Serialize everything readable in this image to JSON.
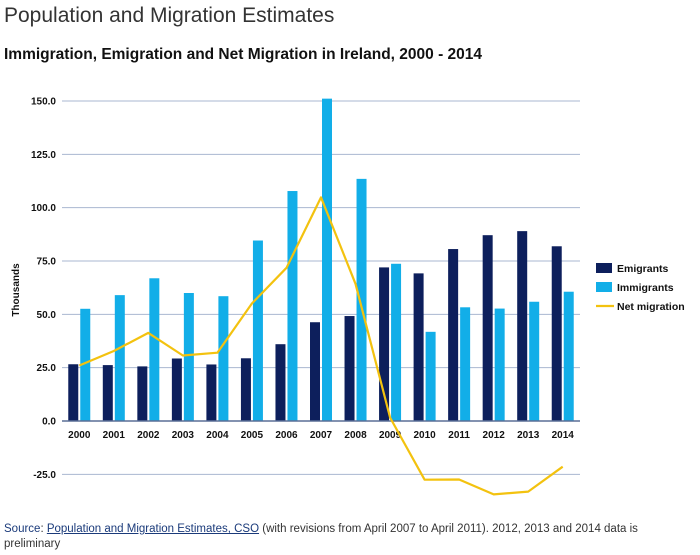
{
  "page": {
    "title": "Population and Migration Estimates"
  },
  "source": {
    "label": "Source",
    "link_text": "Population and Migration Estimates, CSO",
    "note": " (with revisions from April 2007 to April 2011). 2012, 2013 and 2014 data is preliminary"
  },
  "colors": {
    "emigrants": "#0d1f5c",
    "immigrants": "#12aee8",
    "net_migration": "#f3c20f",
    "grid": "#a9b7d1",
    "axis": "#5a6e96"
  },
  "chart_data": {
    "type": "bar",
    "title": "Immigration, Emigration and Net Migration in Ireland, 2000 - 2014",
    "xlabel": "",
    "ylabel": "Thousands",
    "ylim": [
      -40,
      150
    ],
    "yticks": [
      150,
      125,
      100,
      75,
      50,
      25,
      0,
      -25
    ],
    "ytick_labels": [
      "150.0",
      "125.0",
      "100.0",
      "75.0",
      "50.0",
      "25.0",
      "0.0",
      "-25.0"
    ],
    "grid": true,
    "legend_position": "right",
    "categories": [
      "2000",
      "2001",
      "2002",
      "2003",
      "2004",
      "2005",
      "2006",
      "2007",
      "2008",
      "2009",
      "2010",
      "2011",
      "2012",
      "2013",
      "2014"
    ],
    "series": [
      {
        "name": "Emigrants",
        "type": "bar",
        "values": [
          26.6,
          26.2,
          25.6,
          29.3,
          26.5,
          29.4,
          36.0,
          46.3,
          49.2,
          72.0,
          69.2,
          80.6,
          87.1,
          89.0,
          81.9
        ]
      },
      {
        "name": "Immigrants",
        "type": "bar",
        "values": [
          52.6,
          59.0,
          66.9,
          60.0,
          58.5,
          84.6,
          107.8,
          151.1,
          113.5,
          73.7,
          41.8,
          53.3,
          52.7,
          55.9,
          60.6
        ]
      },
      {
        "name": "Net migration",
        "type": "line",
        "values": [
          26.0,
          32.8,
          41.3,
          30.7,
          32.0,
          55.1,
          71.8,
          104.8,
          64.3,
          1.6,
          -27.5,
          -27.4,
          -34.4,
          -33.1,
          -21.4
        ]
      }
    ]
  }
}
